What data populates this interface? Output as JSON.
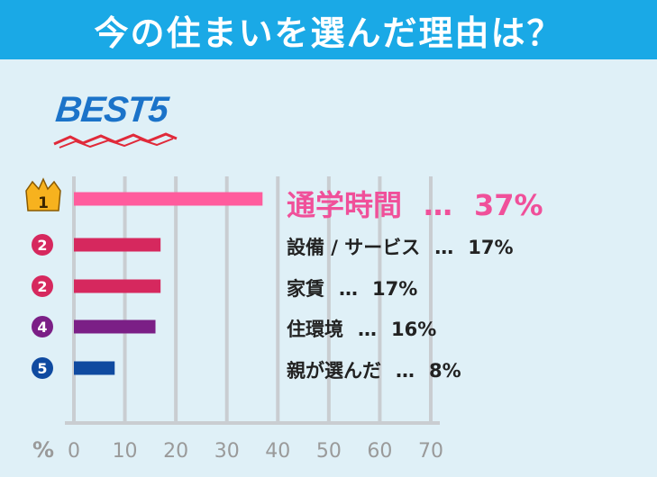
{
  "header": {
    "title": "今の住まいを選んだ理由は？"
  },
  "badge": {
    "text": "BEST5"
  },
  "chart_data": {
    "type": "bar",
    "orientation": "horizontal",
    "categories": [
      "通学時間",
      "設備 / サービス",
      "家賃",
      "住環境",
      "親が選んだ"
    ],
    "values": [
      37,
      17,
      17,
      16,
      8
    ],
    "ranks": [
      "1",
      "2",
      "2",
      "4",
      "5"
    ],
    "value_labels": [
      "37%",
      "17%",
      "17%",
      "16%",
      "8%"
    ],
    "separator": "…",
    "xlabel": "%",
    "xlim": [
      0,
      70
    ],
    "xticks": [
      "0",
      "10",
      "20",
      "30",
      "40",
      "50",
      "60",
      "70"
    ],
    "grid": true,
    "colors": [
      "#ff5c9d",
      "#d6285e",
      "#d6285e",
      "#7b1f86",
      "#0f4aa0"
    ],
    "rank_colors": [
      "#f7b21e",
      "#d6285e",
      "#d6285e",
      "#7b1f86",
      "#0f4aa0"
    ]
  }
}
